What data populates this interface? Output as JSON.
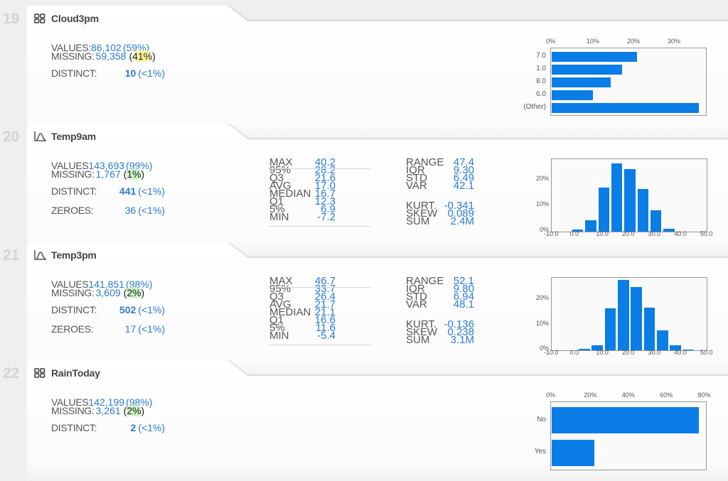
{
  "columns": [
    {
      "index": "19",
      "name": "Cloud3pm",
      "type_icon": "categorical-grid-icon",
      "summary": {
        "values_label": "VALUES:",
        "values": "86,102",
        "values_pct": "(59%)",
        "missing_label": "MISSING:",
        "missing": "59,358",
        "missing_pct": "(41%)",
        "missing_highlight": "#fff3a0",
        "distinct_label": "DISTINCT:",
        "distinct": "10",
        "distinct_pct": "(<1%)"
      }
    },
    {
      "index": "20",
      "name": "Temp9am",
      "type_icon": "numeric-distribution-icon",
      "summary": {
        "values_label": "VALUES",
        "values": "143,693",
        "values_pct": "(99%)",
        "missing_label": "MISSING:",
        "missing": "1,767",
        "missing_pct": "(1%)",
        "missing_highlight": "#c9f0c4",
        "distinct_label": "DISTINCT:",
        "distinct": "441",
        "distinct_pct": "(<1%)",
        "zeroes_label": "ZEROES:",
        "zeroes": "36",
        "zeroes_pct": "(<1%)"
      },
      "quantiles": [
        {
          "k": "MAX",
          "v": "40.2"
        },
        {
          "k": "95%",
          "v": "28.2"
        },
        {
          "k": "Q3",
          "v": "21.6"
        },
        {
          "k": "AVG",
          "v": "17.0"
        },
        {
          "k": "MEDIAN",
          "v": "16.7"
        },
        {
          "k": "Q1",
          "v": "12.3"
        },
        {
          "k": "5%",
          "v": "6.9"
        },
        {
          "k": "MIN",
          "v": "-7.2"
        }
      ],
      "moments": [
        {
          "k": "RANGE",
          "v": "47.4"
        },
        {
          "k": "IQR",
          "v": "9.30"
        },
        {
          "k": "STD",
          "v": "6.49"
        },
        {
          "k": "VAR",
          "v": "42.1"
        }
      ],
      "shape": [
        {
          "k": "KURT.",
          "v": "-0.341"
        },
        {
          "k": "SKEW",
          "v": "0.089"
        },
        {
          "k": "SUM",
          "v": "2.4M"
        }
      ]
    },
    {
      "index": "21",
      "name": "Temp3pm",
      "type_icon": "numeric-distribution-icon",
      "summary": {
        "values_label": "VALUES",
        "values": "141,851",
        "values_pct": "(98%)",
        "missing_label": "MISSING:",
        "missing": "3,609",
        "missing_pct": "(2%)",
        "missing_highlight": "#c9f0c4",
        "distinct_label": "DISTINCT:",
        "distinct": "502",
        "distinct_pct": "(<1%)",
        "zeroes_label": "ZEROES:",
        "zeroes": "17",
        "zeroes_pct": "(<1%)"
      },
      "quantiles": [
        {
          "k": "MAX",
          "v": "46.7"
        },
        {
          "k": "95%",
          "v": "33.7"
        },
        {
          "k": "Q3",
          "v": "26.4"
        },
        {
          "k": "AVG",
          "v": "21.7"
        },
        {
          "k": "MEDIAN",
          "v": "21.1"
        },
        {
          "k": "Q1",
          "v": "16.6"
        },
        {
          "k": "5%",
          "v": "11.6"
        },
        {
          "k": "MIN",
          "v": "-5.4"
        }
      ],
      "moments": [
        {
          "k": "RANGE",
          "v": "52.1"
        },
        {
          "k": "IQR",
          "v": "9.80"
        },
        {
          "k": "STD",
          "v": "6.94"
        },
        {
          "k": "VAR",
          "v": "48.1"
        }
      ],
      "shape": [
        {
          "k": "KURT.",
          "v": "-0.136"
        },
        {
          "k": "SKEW",
          "v": "0.238"
        },
        {
          "k": "SUM",
          "v": "3.1M"
        }
      ]
    },
    {
      "index": "22",
      "name": "RainToday",
      "type_icon": "categorical-grid-icon",
      "summary": {
        "values_label": "VALUES",
        "values": "142,199",
        "values_pct": "(98%)",
        "missing_label": "MISSING:",
        "missing": "3,261",
        "missing_pct": "(2%)",
        "missing_highlight": "#c9f0c4",
        "distinct_label": "DISTINCT:",
        "distinct": "2",
        "distinct_pct": "(<1%)"
      }
    }
  ],
  "chart_data": [
    {
      "type": "bar",
      "orientation": "horizontal",
      "column": "Cloud3pm",
      "categories": [
        "7.0",
        "1.0",
        "8.0",
        "6.0",
        "(Other)"
      ],
      "values": [
        21.0,
        17.4,
        14.6,
        10.2,
        36.4
      ],
      "x_ticks": [
        "0%",
        "10%",
        "20%",
        "30%"
      ],
      "xlim": [
        0,
        38
      ],
      "unit": "%"
    },
    {
      "type": "bar",
      "orientation": "vertical",
      "column": "Temp9am",
      "histogram": true,
      "bin_centers": [
        0,
        5,
        10,
        15,
        20,
        25,
        30,
        35
      ],
      "values": [
        0.9,
        4.5,
        17.0,
        26.5,
        24.3,
        16.7,
        8.3,
        1.1
      ],
      "x_ticks": [
        "-10.0",
        "0.0",
        "10.0",
        "20.0",
        "30.0",
        "40.0",
        "50.0"
      ],
      "xlim": [
        -10,
        50
      ],
      "y_ticks": [
        "0%",
        "10%",
        "20%"
      ],
      "ylim": [
        0,
        28
      ],
      "unit": "%"
    },
    {
      "type": "bar",
      "orientation": "vertical",
      "column": "Temp3pm",
      "histogram": true,
      "bin_centers": [
        2.5,
        7.5,
        12.5,
        17.5,
        22.5,
        27.5,
        32.5,
        37.5,
        42.5
      ],
      "values": [
        0.6,
        2.0,
        16.5,
        28.0,
        25.2,
        17.0,
        7.9,
        2.0,
        0.3
      ],
      "x_ticks": [
        "-10.0",
        "0.0",
        "10.0",
        "20.0",
        "30.0",
        "40.0",
        "50.0"
      ],
      "xlim": [
        -10,
        50
      ],
      "y_ticks": [
        "0%",
        "10%",
        "20%"
      ],
      "ylim": [
        0,
        29
      ],
      "unit": "%"
    },
    {
      "type": "bar",
      "orientation": "horizontal",
      "column": "RainToday",
      "categories": [
        "No",
        "Yes"
      ],
      "values": [
        77.5,
        22.4
      ],
      "x_ticks": [
        "0%",
        "20%",
        "40%",
        "60%",
        "80%"
      ],
      "xlim": [
        0,
        82
      ],
      "unit": "%"
    }
  ],
  "colors": {
    "bar": "#0a7de6",
    "value_text": "#2a7bd4",
    "label_text": "#555555",
    "row_index": "#d4d4d4"
  }
}
